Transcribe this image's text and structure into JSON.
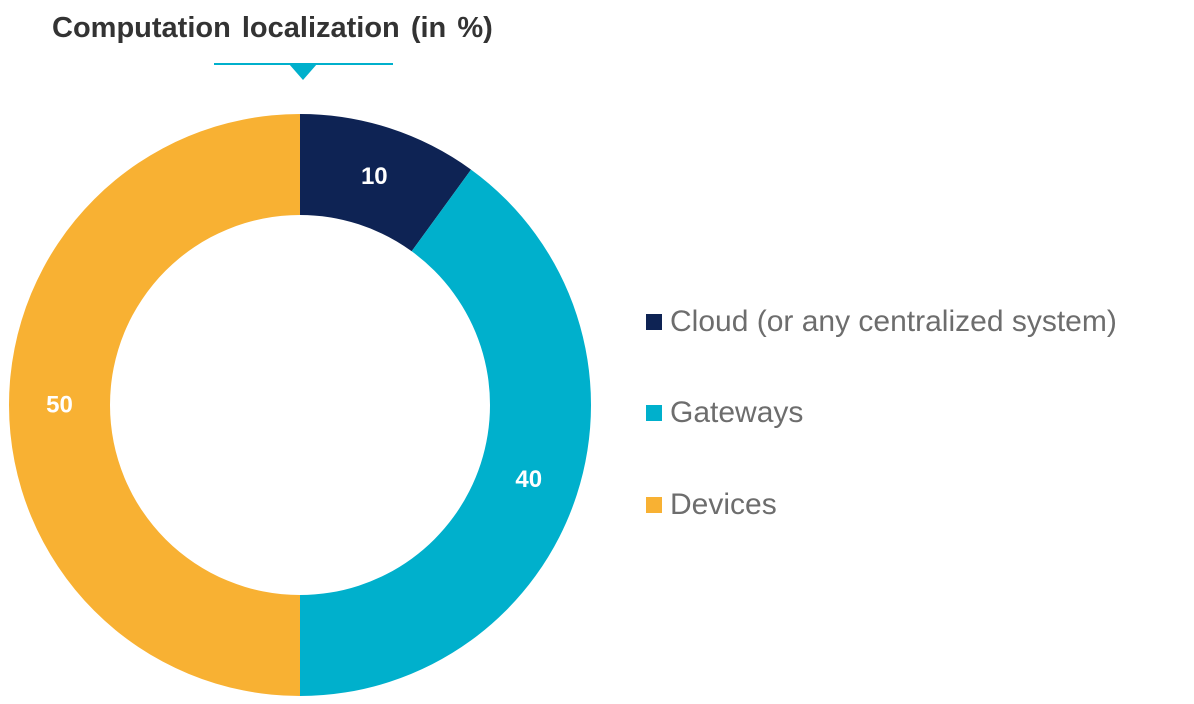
{
  "chart_data": {
    "type": "pie",
    "variant": "donut",
    "title": "Computation localization (in %)",
    "categories": [
      "Cloud (or any centralized system)",
      "Gateways",
      "Devices"
    ],
    "values": [
      10,
      40,
      50
    ],
    "data_labels": [
      "10",
      "40",
      "50"
    ],
    "colors": [
      "#0e2354",
      "#00b0cc",
      "#f8b133"
    ],
    "start_angle": "12 o'clock, clockwise",
    "legend_placement": "right",
    "accent_color": "#00b0cc"
  }
}
